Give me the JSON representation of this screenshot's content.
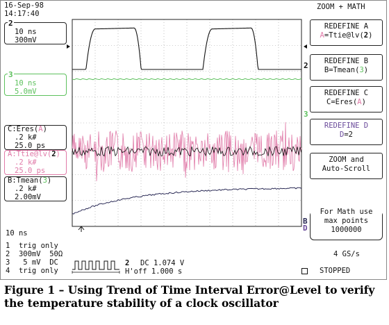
{
  "header": {
    "date": "16-Sep-98",
    "time": "14:17:40",
    "mode": "ZOOM + MATH"
  },
  "channels": {
    "ch2": {
      "num": "2",
      "timebase": "10 ns",
      "volts": "300mV"
    },
    "ch3": {
      "num": "3",
      "timebase": "10 ns",
      "volts": "5.0mV"
    },
    "C": {
      "label": "C:Eres(",
      "src": "A",
      "close": ")",
      "scale": ".2 k#",
      "offset": "25.0 ps"
    },
    "A": {
      "label": "A:Ttie@lv(",
      "src": "2",
      "close": ")",
      "scale": ".2 k#",
      "offset": "25.0 ps"
    },
    "B": {
      "label": "B:Tmean(",
      "src": "3",
      "close": ")",
      "scale": ".2 k#",
      "offset": "2.00mV"
    }
  },
  "menu": [
    {
      "title": "REDEFINE A",
      "line2a": "A",
      "line2b": "=Ttie@lv(",
      "line2c": "2",
      "line2d": ")"
    },
    {
      "title": "REDEFINE B",
      "line2a": "B",
      "line2b": "=Tmean(",
      "line2c": "3",
      "line2d": ")"
    },
    {
      "title": "REDEFINE C",
      "line2a": "C",
      "line2b": "=Eres(",
      "line2c": "A",
      "line2d": ")"
    },
    {
      "title": "REDEFINE D",
      "line2a": "D",
      "line2b": "=2",
      "line2c": "",
      "line2d": ""
    },
    {
      "title": "ZOOM and",
      "line2": "Auto-Scroll"
    }
  ],
  "math_note": {
    "line1": "For Math use",
    "line2": "max points",
    "line3": "1000000"
  },
  "bottom": {
    "timebase": "10 ns",
    "trig1": "1  trig only",
    "trig2": "2  300mV  50Ω",
    "trig3": "3   5 mV  DC",
    "trig4": "4  trig only",
    "trig_ch": "2",
    "trig_dc": "DC 1.074 V",
    "hoff": "H'off 1.000 s",
    "rate": "4 GS/s",
    "status": "STOPPED"
  },
  "trace_markers": {
    "right_2": "2",
    "right_3": "3",
    "right_B": "B",
    "right_D": "D"
  },
  "caption": {
    "line1": "Figure 1 – Using Trend of Time Interval Error@Level to verify",
    "line2": "the temperature stability of a clock oscillator"
  }
}
